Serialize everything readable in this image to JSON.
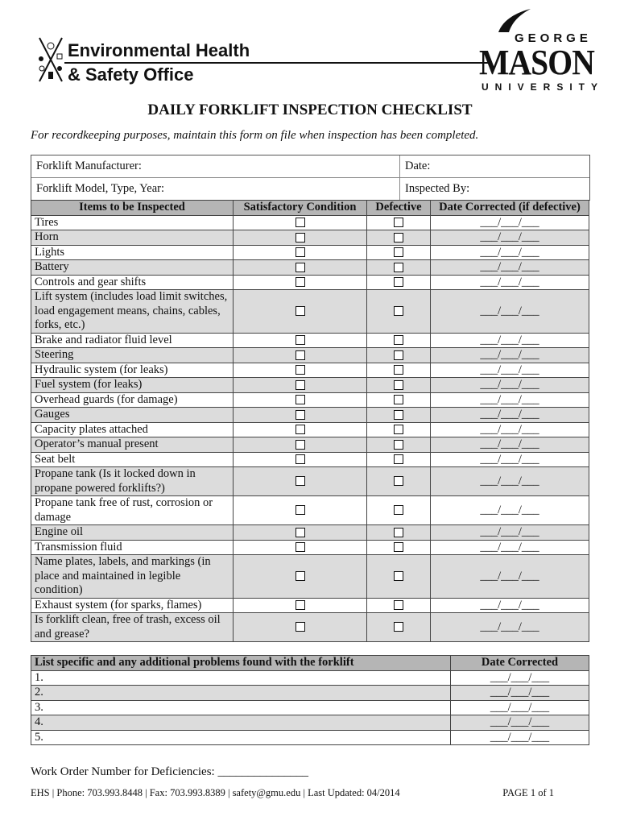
{
  "header": {
    "org_line1": "Environmental Health",
    "org_line2": "& Safety Office",
    "university_logo": {
      "line1": "GEORGE",
      "line2": "MASON",
      "line3": "UNIVERSITY"
    }
  },
  "title": "DAILY FORKLIFT INSPECTION CHECKLIST",
  "subtitle": "For recordkeeping purposes, maintain this form on file when inspection has been completed.",
  "info": {
    "manufacturer_label": "Forklift Manufacturer:",
    "date_label": "Date:",
    "model_label": "Forklift Model, Type, Year:",
    "inspected_by_label": "Inspected By:"
  },
  "checklist": {
    "columns": [
      "Items to be Inspected",
      "Satisfactory Condition",
      "Defective",
      "Date Corrected (if defective)"
    ],
    "date_placeholder": "___/___/___",
    "items": [
      "Tires",
      "Horn",
      "Lights",
      "Battery",
      "Controls and gear shifts",
      "Lift system (includes load limit switches, load engagement means, chains, cables, forks, etc.)",
      "Brake and radiator fluid level",
      "Steering",
      "Hydraulic system (for leaks)",
      "Fuel system (for leaks)",
      "Overhead guards (for damage)",
      "Gauges",
      "Capacity plates attached",
      "Operator’s manual present",
      "Seat belt",
      "Propane tank (Is it locked down in propane powered forklifts?)",
      "Propane tank free of rust, corrosion or damage",
      "Engine oil",
      "Transmission fluid",
      "Name plates, labels, and markings (in place and maintained in legible condition)",
      "Exhaust system (for sparks, flames)",
      "Is forklift clean, free of trash, excess oil and grease?"
    ]
  },
  "problems": {
    "columns": [
      "List specific and any additional problems found with the forklift",
      "Date Corrected"
    ],
    "rows": [
      "1.",
      "2.",
      "3.",
      "4.",
      "5."
    ],
    "date_placeholder": "___/___/___"
  },
  "work_order": "Work Order Number for Deficiencies: _______________",
  "footer": {
    "contact": "EHS  |  Phone: 703.993.8448  |  Fax: 703.993.8389  |  safety@gmu.edu  |  Last Updated: 04/2014",
    "page": "PAGE 1 of 1"
  }
}
